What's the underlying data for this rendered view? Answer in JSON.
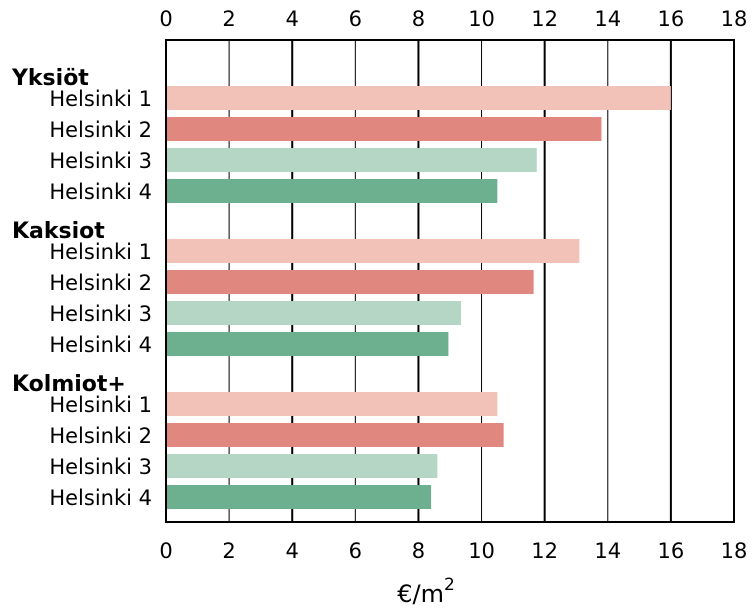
{
  "chart_data": {
    "type": "bar",
    "orientation": "horizontal",
    "xlabel": "€/m",
    "xlabel_superscript": "2",
    "xlim": [
      0,
      18
    ],
    "xticks": [
      0,
      2,
      4,
      6,
      8,
      10,
      12,
      14,
      16,
      18
    ],
    "grid": "vertical",
    "groups": [
      {
        "name": "Yksiöt",
        "bars": [
          {
            "label": "Helsinki 1",
            "value": 16.0
          },
          {
            "label": "Helsinki 2",
            "value": 13.8
          },
          {
            "label": "Helsinki 3",
            "value": 11.75
          },
          {
            "label": "Helsinki 4",
            "value": 10.5
          }
        ]
      },
      {
        "name": "Kaksiot",
        "bars": [
          {
            "label": "Helsinki 1",
            "value": 13.1
          },
          {
            "label": "Helsinki 2",
            "value": 11.65
          },
          {
            "label": "Helsinki 3",
            "value": 9.35
          },
          {
            "label": "Helsinki 4",
            "value": 8.95
          }
        ]
      },
      {
        "name": "Kolmiot+",
        "bars": [
          {
            "label": "Helsinki 1",
            "value": 10.5
          },
          {
            "label": "Helsinki 2",
            "value": 10.7
          },
          {
            "label": "Helsinki 3",
            "value": 8.6
          },
          {
            "label": "Helsinki 4",
            "value": 8.4
          }
        ]
      }
    ],
    "colors": [
      "#f2c2b8",
      "#e08880",
      "#b5d6c4",
      "#6db090"
    ]
  }
}
